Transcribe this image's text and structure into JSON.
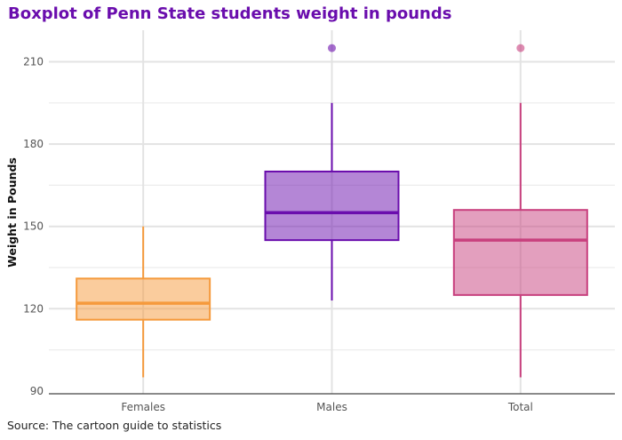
{
  "title": "Boxplot of Penn State students weight in pounds",
  "caption": "Source: The cartoon guide to statistics",
  "chart_data": {
    "type": "boxplot",
    "title": "Boxplot of Penn State students weight in pounds",
    "xlabel": "",
    "ylabel": "Weight in Pounds",
    "ylim": [
      89,
      221.5
    ],
    "yticks": [
      90,
      120,
      150,
      180,
      210
    ],
    "categories": [
      "Females",
      "Males",
      "Total"
    ],
    "grid": true,
    "boxes": [
      {
        "category": "Females",
        "whisker_low": 95,
        "q1": 116,
        "median": 122,
        "q3": 131,
        "whisker_high": 150,
        "outliers": [],
        "color": "#f59a3c"
      },
      {
        "category": "Males",
        "whisker_low": 123,
        "q1": 145,
        "median": 155,
        "q3": 170,
        "whisker_high": 195,
        "outliers": [
          215
        ],
        "color": "#6a0dad"
      },
      {
        "category": "Total",
        "whisker_low": 95,
        "q1": 125,
        "median": 145,
        "q3": 156,
        "whisker_high": 195,
        "outliers": [
          215
        ],
        "color": "#c8407e"
      }
    ]
  }
}
